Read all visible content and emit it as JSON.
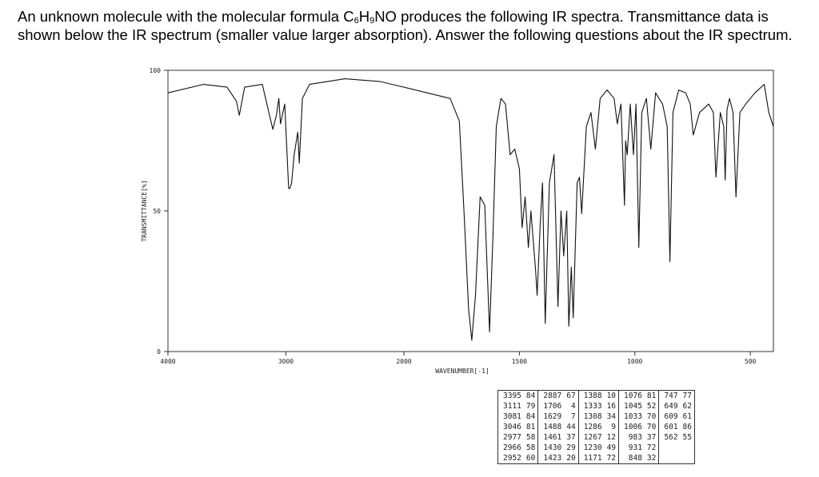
{
  "question": [
    "An unknown molecule with the molecular formula C",
    "6",
    "H",
    "9",
    "NO produces the following IR spectra. Transmittance data is shown below the IR spectrum (smaller value larger absorption). Answer the following questions about the IR spectrum."
  ],
  "chart_data": {
    "type": "line",
    "x_label": "WAVENUMBER[-1]",
    "y_label": "TRANSMITTANCE[%]",
    "xlim": [
      4000,
      400
    ],
    "x_scale_break": 2000,
    "xticks": [
      4000,
      3000,
      2000,
      1500,
      1000,
      500
    ],
    "ylim": [
      0,
      100
    ],
    "yticks": [
      0,
      50,
      100
    ],
    "grid": false,
    "x": [
      4000,
      3700,
      3500,
      3420,
      3395,
      3350,
      3200,
      3111,
      3081,
      3060,
      3046,
      3010,
      2977,
      2966,
      2952,
      2930,
      2900,
      2887,
      2860,
      2800,
      2500,
      2200,
      2000,
      1900,
      1800,
      1760,
      1740,
      1720,
      1706,
      1690,
      1670,
      1650,
      1640,
      1629,
      1615,
      1600,
      1580,
      1560,
      1540,
      1520,
      1500,
      1488,
      1475,
      1461,
      1450,
      1430,
      1423,
      1410,
      1400,
      1388,
      1370,
      1350,
      1333,
      1320,
      1308,
      1295,
      1286,
      1275,
      1267,
      1250,
      1240,
      1230,
      1210,
      1190,
      1171,
      1150,
      1120,
      1090,
      1076,
      1060,
      1045,
      1040,
      1033,
      1020,
      1006,
      995,
      983,
      970,
      950,
      931,
      910,
      880,
      860,
      848,
      835,
      810,
      780,
      760,
      747,
      720,
      680,
      660,
      649,
      630,
      615,
      609,
      601,
      590,
      575,
      562,
      545,
      520,
      480,
      440,
      420,
      400
    ],
    "series": [
      {
        "name": "spectrum",
        "color": "#111111",
        "values": [
          92,
          95,
          94,
          89,
          84,
          94,
          95,
          79,
          84,
          90,
          81,
          88,
          58,
          58,
          60,
          70,
          78,
          67,
          90,
          95,
          97,
          96,
          94,
          92,
          90,
          82,
          50,
          15,
          4,
          20,
          55,
          52,
          30,
          7,
          40,
          80,
          90,
          88,
          70,
          72,
          65,
          44,
          55,
          37,
          50,
          29,
          20,
          45,
          60,
          10,
          60,
          70,
          16,
          50,
          34,
          50,
          9,
          30,
          12,
          60,
          62,
          49,
          80,
          85,
          72,
          90,
          93,
          90,
          81,
          88,
          52,
          75,
          70,
          88,
          70,
          88,
          37,
          85,
          90,
          72,
          92,
          88,
          80,
          32,
          85,
          93,
          92,
          88,
          77,
          85,
          88,
          85,
          62,
          85,
          80,
          61,
          86,
          90,
          85,
          55,
          85,
          88,
          92,
          95,
          85,
          80
        ]
      }
    ]
  },
  "table": {
    "columns": [
      [
        [
          3395,
          84
        ],
        [
          3111,
          79
        ],
        [
          3081,
          84
        ],
        [
          3046,
          81
        ],
        [
          2977,
          58
        ],
        [
          2966,
          58
        ],
        [
          2952,
          60
        ]
      ],
      [
        [
          2887,
          67
        ],
        [
          1706,
          4
        ],
        [
          1629,
          7
        ],
        [
          1488,
          44
        ],
        [
          1461,
          37
        ],
        [
          1430,
          29
        ],
        [
          1423,
          20
        ]
      ],
      [
        [
          1388,
          10
        ],
        [
          1333,
          16
        ],
        [
          1308,
          34
        ],
        [
          1286,
          9
        ],
        [
          1267,
          12
        ],
        [
          1230,
          49
        ],
        [
          1171,
          72
        ]
      ],
      [
        [
          1076,
          81
        ],
        [
          1045,
          52
        ],
        [
          1033,
          70
        ],
        [
          1006,
          70
        ],
        [
          983,
          37
        ],
        [
          931,
          72
        ],
        [
          848,
          32
        ]
      ],
      [
        [
          747,
          77
        ],
        [
          649,
          62
        ],
        [
          609,
          61
        ],
        [
          601,
          86
        ],
        [
          562,
          55
        ]
      ]
    ]
  }
}
